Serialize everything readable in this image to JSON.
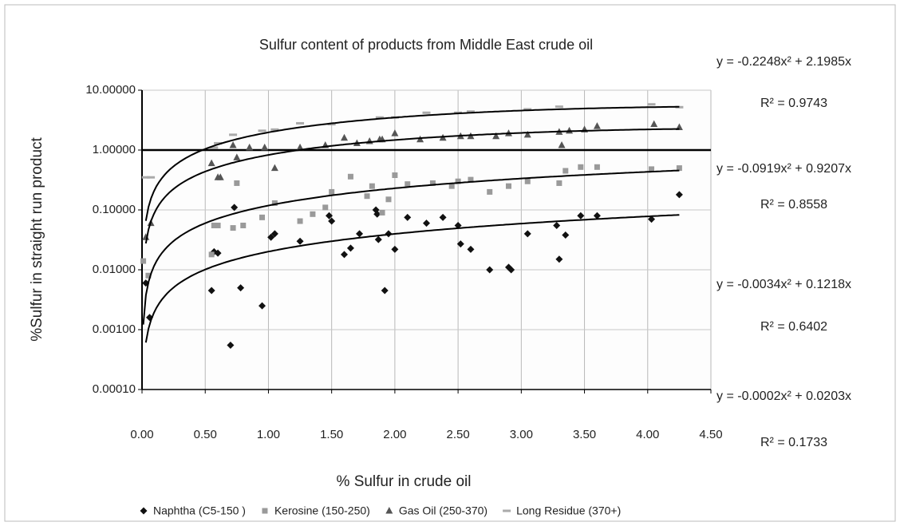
{
  "chart_data": {
    "type": "scatter",
    "title": "Sulfur content of products from Middle East crude oil",
    "x_label": "% Sulfur in crude oil",
    "y_label": "%Sulfur in straight run product",
    "log_y": true,
    "grid": true,
    "x_axis_crosses": 1,
    "xlim": [
      0,
      4.5
    ],
    "xticks": [
      {
        "value": 0,
        "label": "0.00"
      },
      {
        "value": 0.5,
        "label": "0.50"
      },
      {
        "value": 1,
        "label": "1.00"
      },
      {
        "value": 1.5,
        "label": "1.50"
      },
      {
        "value": 2,
        "label": "2.00"
      },
      {
        "value": 2.5,
        "label": "2.50"
      },
      {
        "value": 3,
        "label": "3.00"
      },
      {
        "value": 3.5,
        "label": "3.50"
      },
      {
        "value": 4,
        "label": "4.00"
      },
      {
        "value": 4.5,
        "label": "4.50"
      }
    ],
    "ylim": [
      0.0001,
      10
    ],
    "yticks": [
      {
        "value": 10,
        "label": "10.00000"
      },
      {
        "value": 1,
        "label": "1.00000"
      },
      {
        "value": 0.1,
        "label": "0.10000"
      },
      {
        "value": 0.01,
        "label": "0.01000"
      },
      {
        "value": 0.001,
        "label": "0.00100"
      },
      {
        "value": 0.0001,
        "label": "0.00010"
      }
    ],
    "series": [
      {
        "name": "Naphtha (C5-150 )",
        "marker": "diamond",
        "color": "#111111",
        "x": [
          0.03,
          0.06,
          0.55,
          0.57,
          0.6,
          0.7,
          0.73,
          0.78,
          0.95,
          1.02,
          1.05,
          1.25,
          1.48,
          1.5,
          1.6,
          1.65,
          1.72,
          1.85,
          1.86,
          1.87,
          1.92,
          1.95,
          2.0,
          2.1,
          2.25,
          2.38,
          2.5,
          2.52,
          2.6,
          2.75,
          2.9,
          2.92,
          3.05,
          3.28,
          3.3,
          3.35,
          3.47,
          3.6,
          4.03,
          4.25
        ],
        "y": [
          0.006,
          0.0016,
          0.0045,
          0.02,
          0.019,
          0.00055,
          0.11,
          0.005,
          0.0025,
          0.035,
          0.04,
          0.03,
          0.08,
          0.065,
          0.018,
          0.023,
          0.04,
          0.1,
          0.085,
          0.032,
          0.0045,
          0.04,
          0.022,
          0.075,
          0.06,
          0.075,
          0.055,
          0.027,
          0.022,
          0.01,
          0.011,
          0.01,
          0.04,
          0.055,
          0.015,
          0.038,
          0.08,
          0.08,
          0.07,
          0.18
        ],
        "trendline": {
          "coefficients": [
            -0.0002,
            0.0203
          ],
          "equation": "y = -0.0002x² + 0.0203x",
          "r_squared": "R² = 0.1733"
        }
      },
      {
        "name": "Kerosine (150-250)",
        "marker": "square",
        "color": "#9a9a9a",
        "x": [
          0.01,
          0.05,
          0.55,
          0.57,
          0.6,
          0.72,
          0.75,
          0.8,
          0.95,
          1.05,
          1.25,
          1.35,
          1.45,
          1.5,
          1.65,
          1.78,
          1.82,
          1.9,
          1.95,
          2.0,
          2.1,
          2.3,
          2.45,
          2.5,
          2.6,
          2.75,
          2.9,
          3.05,
          3.3,
          3.35,
          3.47,
          3.6,
          4.03,
          4.25
        ],
        "y": [
          0.014,
          0.008,
          0.018,
          0.055,
          0.055,
          0.05,
          0.28,
          0.055,
          0.075,
          0.13,
          0.065,
          0.085,
          0.11,
          0.2,
          0.36,
          0.17,
          0.25,
          0.09,
          0.15,
          0.38,
          0.27,
          0.28,
          0.25,
          0.3,
          0.32,
          0.2,
          0.25,
          0.3,
          0.28,
          0.45,
          0.52,
          0.52,
          0.48,
          0.5
        ],
        "trendline": {
          "coefficients": [
            -0.0034,
            0.1218
          ],
          "equation": "y = -0.0034x² + 0.1218x",
          "r_squared": "R² = 0.6402"
        }
      },
      {
        "name": "Gas Oil (250-370)",
        "marker": "triangle",
        "color": "#555555",
        "x": [
          0.03,
          0.07,
          0.55,
          0.6,
          0.62,
          0.72,
          0.75,
          0.85,
          0.97,
          1.05,
          1.25,
          1.45,
          1.6,
          1.7,
          1.8,
          1.88,
          1.9,
          2.0,
          2.2,
          2.38,
          2.52,
          2.6,
          2.8,
          2.9,
          3.05,
          3.3,
          3.32,
          3.38,
          3.5,
          3.6,
          4.05,
          4.25
        ],
        "y": [
          0.035,
          0.06,
          0.6,
          0.35,
          0.35,
          1.2,
          0.75,
          1.1,
          1.1,
          0.5,
          1.1,
          1.2,
          1.6,
          1.3,
          1.4,
          1.5,
          1.5,
          1.9,
          1.5,
          1.6,
          1.7,
          1.7,
          1.7,
          1.9,
          1.8,
          2.0,
          1.2,
          2.1,
          2.2,
          2.5,
          2.7,
          2.4
        ],
        "trendline": {
          "coefficients": [
            -0.0919,
            0.9207
          ],
          "equation": "y = -0.0919x² + 0.9207x",
          "r_squared": "R² = 0.8558"
        }
      },
      {
        "name": "Long Residue (370+)",
        "marker": "dash",
        "color": "#aaaaaa",
        "x": [
          0.03,
          0.07,
          0.57,
          0.6,
          0.72,
          0.95,
          1.05,
          1.25,
          1.5,
          1.88,
          2.0,
          2.25,
          2.5,
          2.6,
          3.05,
          3.3,
          4.03,
          4.25
        ],
        "y": [
          0.35,
          0.35,
          1.1,
          1.3,
          1.8,
          2.1,
          2.2,
          2.8,
          2.7,
          3.5,
          3.5,
          4.2,
          4.2,
          4.4,
          4.8,
          5.3,
          5.8,
          5.2
        ],
        "trendline": {
          "coefficients": [
            -0.2248,
            2.1985
          ],
          "equation": "y = -0.2248x² + 2.1985x",
          "r_squared": "R² = 0.9743"
        }
      }
    ]
  }
}
